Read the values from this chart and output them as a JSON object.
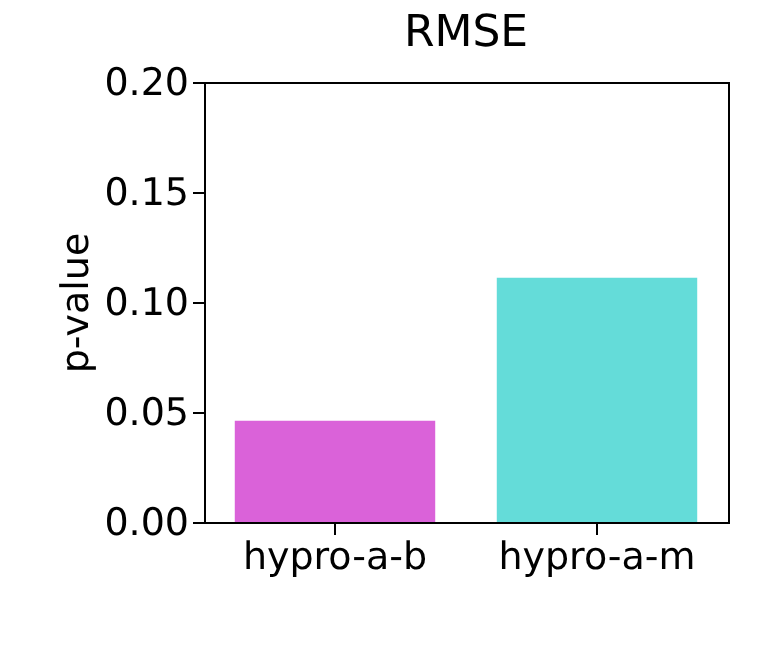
{
  "chart_data": {
    "type": "bar",
    "title": "RMSE",
    "ylabel": "p-value",
    "categories": [
      "hypro-a-b",
      "hypro-a-m"
    ],
    "values": [
      0.046,
      0.111
    ],
    "colors": [
      "#da62d9",
      "#64dcd9"
    ],
    "ylim": [
      0,
      0.2
    ],
    "yticks": [
      {
        "value": 0,
        "label": "0.00"
      },
      0.05,
      {
        "value": 0.1,
        "label": "0.10"
      },
      0.15,
      {
        "value": 0.2,
        "label": "0.20"
      }
    ],
    "grid": false
  }
}
